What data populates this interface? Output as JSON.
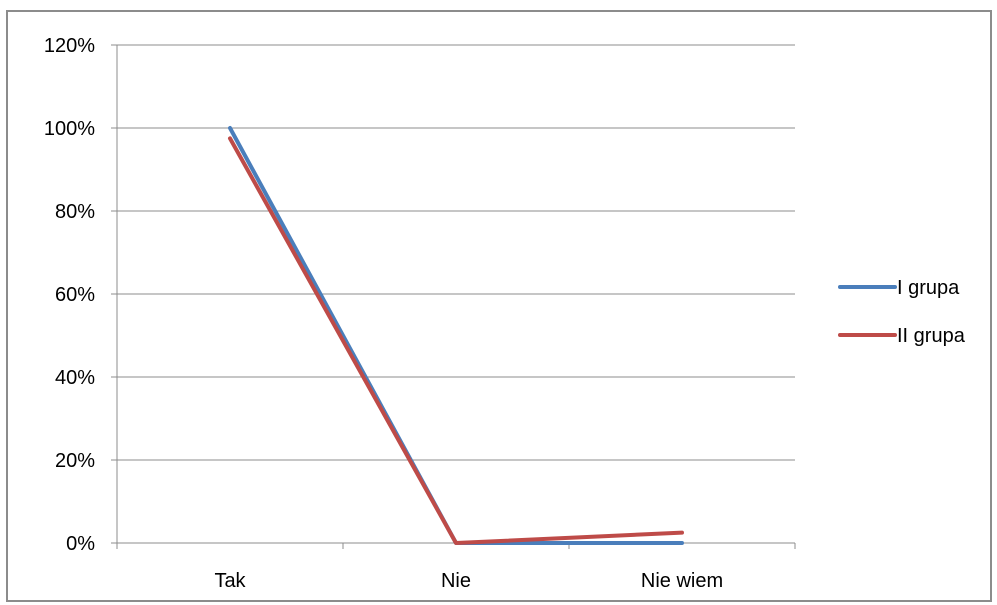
{
  "chart_data": {
    "type": "line",
    "categories": [
      "Tak",
      "Nie",
      "Nie wiem"
    ],
    "series": [
      {
        "name": "I grupa",
        "values": [
          100,
          0,
          0
        ],
        "color": "#4a7ebb"
      },
      {
        "name": "II grupa",
        "values": [
          97.5,
          0,
          2.5
        ],
        "color": "#be4b48"
      }
    ],
    "ylim": [
      0,
      120
    ],
    "yticks": [
      "0%",
      "20%",
      "40%",
      "60%",
      "80%",
      "100%",
      "120%"
    ],
    "ytick_values": [
      0,
      20,
      40,
      60,
      80,
      100,
      120
    ],
    "grid": true,
    "legend": "right"
  }
}
